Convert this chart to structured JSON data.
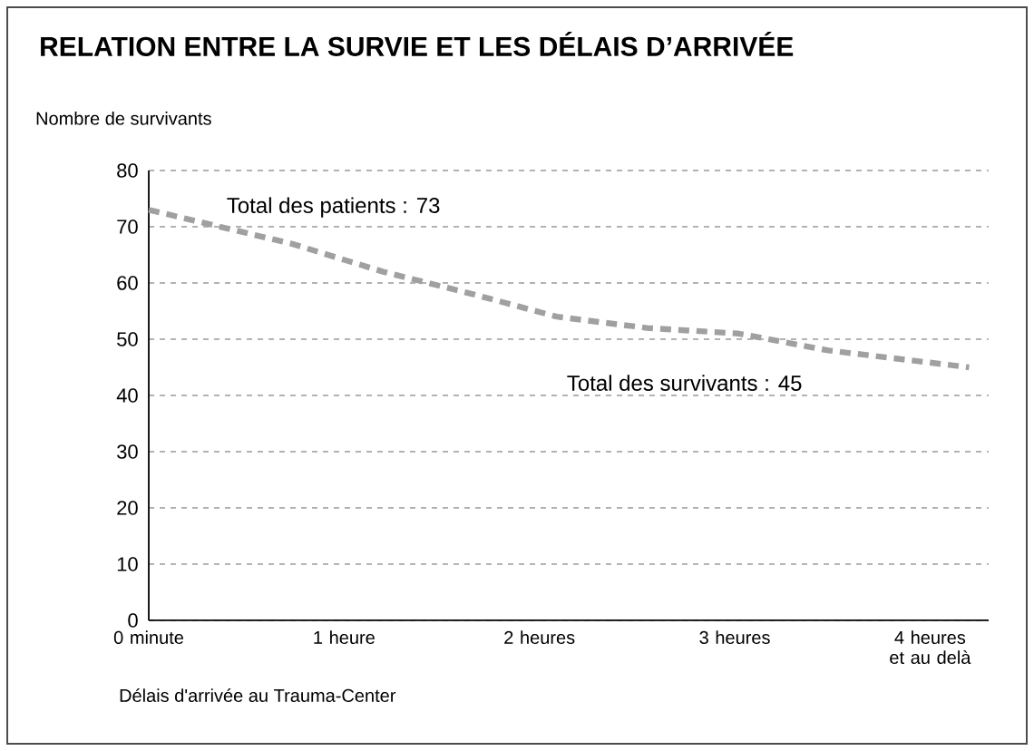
{
  "chart_data": {
    "type": "line",
    "title": "RELATION ENTRE LA SURVIE ET LES DÉLAIS D’ARRIVÉE",
    "ylabel": "Nombre de survivants",
    "xlabel": "Délais d'arrivée au Trauma-Center",
    "x": [
      0,
      0.73,
      1.2,
      1.66,
      2.09,
      2.55,
      3.02,
      3.48,
      4.2
    ],
    "series": [
      {
        "color": "#a0a0a0",
        "values": [
          73,
          67,
          62,
          58,
          54,
          52,
          51,
          48,
          45
        ]
      }
    ],
    "xlim": [
      0,
      4.3
    ],
    "xticks": [
      {
        "value": 0,
        "label": "0 minute"
      },
      {
        "value": 1,
        "label": "1 heure"
      },
      {
        "value": 2,
        "label": "2 heures"
      },
      {
        "value": 3,
        "label": "3 heures"
      },
      {
        "value": 4,
        "label": "4 heures et au delà"
      }
    ],
    "ylim": [
      0,
      80
    ],
    "yticks": [
      0,
      10,
      20,
      30,
      40,
      50,
      60,
      70,
      80
    ],
    "grid": "y",
    "line_style": "dashed",
    "annotations": [
      "Total des patients : 73",
      "Total des survivants : 45"
    ]
  }
}
